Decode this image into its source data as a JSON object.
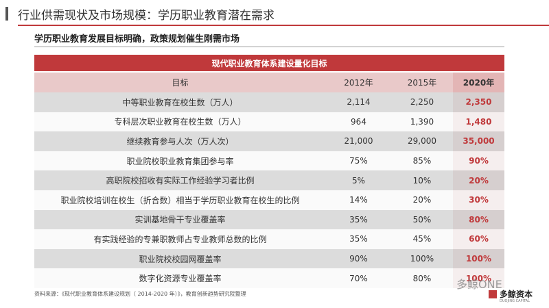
{
  "header": {
    "title": "行业供需现状及市场规模：学历职业教育潜在需求",
    "subtitle": "学历职业教育发展目标明确，政策规划催生刚需市场"
  },
  "table": {
    "caption": "现代职业教育体系建设量化目标",
    "columns": [
      "目标",
      "2012年",
      "2015年",
      "2020年"
    ],
    "rows": [
      [
        "中等职业教育在校生数（万人）",
        "2,114",
        "2,250",
        "2,350"
      ],
      [
        "专科层次职业教育在校生数（万人）",
        "964",
        "1,390",
        "1,480"
      ],
      [
        "继续教育参与人次（万人次）",
        "21,000",
        "29,000",
        "35,000"
      ],
      [
        "职业院校职业教育集团参与率",
        "75%",
        "85%",
        "90%"
      ],
      [
        "高职院校招收有实际工作经验学习者比例",
        "5%",
        "10%",
        "20%"
      ],
      [
        "职业院校培训在校生（折合数）相当于学历职业教育在校生的比例",
        "14%",
        "20%",
        "30%"
      ],
      [
        "实训基地骨干专业覆盖率",
        "35%",
        "50%",
        "80%"
      ],
      [
        "有实践经验的专兼职教师占专业教师总数的比例",
        "35%",
        "45%",
        "60%"
      ],
      [
        "职业院校校园网覆盖率",
        "90%",
        "100%",
        "100%"
      ],
      [
        "数字化资源专业覆盖率",
        "70%",
        "80%",
        "100%"
      ]
    ]
  },
  "footer": {
    "source": "资料来源：《现代职业教育体系建设规划（ 2014-2020 年）》，教育创新趋势研究院整理",
    "watermark": "多鲸ONE",
    "logo": "多鲸资本",
    "logo_sub": "DUOJING CAPITAL"
  }
}
